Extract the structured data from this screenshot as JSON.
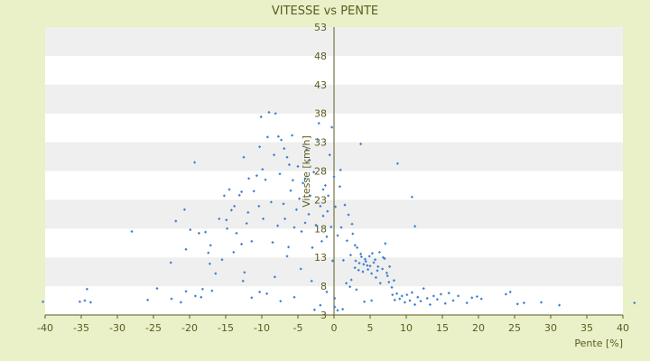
{
  "chart_data": {
    "type": "scatter",
    "title": "VITESSE vs PENTE",
    "xlabel": "Pente [%]",
    "ylabel": "Vitesse [km/h]",
    "xlim": [
      -40,
      40
    ],
    "ylim": [
      3,
      53
    ],
    "xticks": [
      "-40",
      "-35",
      "-30",
      "-25",
      "-20",
      "-15",
      "-10",
      "-5",
      "0",
      "5",
      "10",
      "15",
      "20",
      "25",
      "30",
      "35",
      "40"
    ],
    "yticks": [
      "3",
      "8",
      "13",
      "18",
      "23",
      "28",
      "33",
      "38",
      "43",
      "48",
      "53"
    ],
    "grid": "horizontal alternating bands",
    "colors": {
      "background": "#eaf0c8",
      "band_light": "#ffffff",
      "band_dark": "#efefef",
      "point": "#3f7fd0",
      "text": "#5b5b22",
      "axis": "#5b5b22"
    },
    "series": [
      {
        "values": [
          [
            -40.3,
            5.3
          ],
          [
            -35.2,
            5.3
          ],
          [
            -34.5,
            5.5
          ],
          [
            -34.2,
            7.5
          ],
          [
            -33.7,
            5.2
          ],
          [
            -28,
            17.5
          ],
          [
            -25.8,
            5.6
          ],
          [
            -24.5,
            7.6
          ],
          [
            -22.5,
            5.8
          ],
          [
            -21.9,
            19.3
          ],
          [
            -21.2,
            5.2
          ],
          [
            -20.5,
            7.1
          ],
          [
            -20.7,
            21.3
          ],
          [
            -19.9,
            17.8
          ],
          [
            -19.3,
            29.5
          ],
          [
            -19.2,
            6.3
          ],
          [
            -18.7,
            17.2
          ],
          [
            -18.4,
            6.1
          ],
          [
            -18.2,
            7.5
          ],
          [
            -17.4,
            13.8
          ],
          [
            -17.8,
            17.4
          ],
          [
            -17.2,
            11.9
          ],
          [
            -17.1,
            15.1
          ],
          [
            -16.4,
            10.2
          ],
          [
            -15.9,
            19.7
          ],
          [
            -15.2,
            23.7
          ],
          [
            -14.9,
            19.5
          ],
          [
            -14.5,
            24.8
          ],
          [
            -14.2,
            21.2
          ],
          [
            -13.9,
            13.9
          ],
          [
            -13.5,
            17.2
          ],
          [
            -13.1,
            23.8
          ],
          [
            -12.8,
            24.4
          ],
          [
            -12.5,
            30.4
          ],
          [
            -12.1,
            18.9
          ],
          [
            -11.8,
            26.7
          ],
          [
            -11.4,
            15.8
          ],
          [
            -11.1,
            24.5
          ],
          [
            -10.7,
            27.2
          ],
          [
            -10.4,
            21.9
          ],
          [
            -10.1,
            37.4
          ],
          [
            -9.8,
            19.7
          ],
          [
            -9.5,
            26.5
          ],
          [
            -9.2,
            33.9
          ],
          [
            -9.0,
            38.2
          ],
          [
            -8.7,
            22.6
          ],
          [
            -8.5,
            15.6
          ],
          [
            -8.1,
            38.0
          ],
          [
            -7.8,
            18.5
          ],
          [
            -7.5,
            27.5
          ],
          [
            -7.3,
            33.4
          ],
          [
            -7.0,
            22.3
          ],
          [
            -6.8,
            19.7
          ],
          [
            -6.5,
            30.4
          ],
          [
            -6.3,
            14.8
          ],
          [
            -6.0,
            24.6
          ],
          [
            -5.7,
            26.4
          ],
          [
            -5.5,
            18.2
          ],
          [
            -5.2,
            21.3
          ],
          [
            -5.0,
            28.8
          ],
          [
            -4.8,
            23.2
          ],
          [
            -4.5,
            17.5
          ],
          [
            -4.3,
            25.9
          ],
          [
            -4.0,
            19.0
          ],
          [
            -3.8,
            31.7
          ],
          [
            -3.5,
            20.5
          ],
          [
            -3.3,
            23.7
          ],
          [
            -3.0,
            14.7
          ],
          [
            -2.8,
            27.8
          ],
          [
            -2.5,
            18.6
          ],
          [
            -2.3,
            33.5
          ],
          [
            -2.1,
            36.3
          ],
          [
            -1.9,
            21.9
          ],
          [
            -1.7,
            15.8
          ],
          [
            -1.5,
            24.8
          ],
          [
            -1.2,
            25.5
          ],
          [
            -1.0,
            16.6
          ],
          [
            -0.8,
            23.7
          ],
          [
            -0.6,
            30.8
          ],
          [
            -0.4,
            18.3
          ],
          [
            -0.2,
            12.4
          ],
          [
            0.0,
            27.0
          ],
          [
            0.2,
            21.8
          ],
          [
            0.5,
            16.8
          ],
          [
            0.8,
            25.3
          ],
          [
            1.0,
            18.2
          ],
          [
            1.3,
            12.5
          ],
          [
            1.5,
            22.1
          ],
          [
            1.8,
            15.9
          ],
          [
            2.0,
            20.4
          ],
          [
            2.3,
            13.4
          ],
          [
            2.6,
            17.1
          ],
          [
            2.9,
            11.2
          ],
          [
            3.2,
            14.7
          ],
          [
            3.5,
            12.0
          ],
          [
            3.7,
            13.6
          ],
          [
            4.0,
            10.5
          ],
          [
            4.3,
            12.7
          ],
          [
            4.6,
            11.6
          ],
          [
            4.9,
            13.2
          ],
          [
            5.2,
            10.2
          ],
          [
            5.5,
            12.1
          ],
          [
            5.8,
            9.5
          ],
          [
            6.1,
            11.4
          ],
          [
            6.4,
            8.5
          ],
          [
            6.8,
            13.0
          ],
          [
            7.1,
            15.4
          ],
          [
            7.4,
            9.8
          ],
          [
            7.7,
            11.4
          ],
          [
            8.1,
            6.5
          ],
          [
            8.4,
            5.6
          ],
          [
            8.7,
            6.7
          ],
          [
            9.1,
            5.8
          ],
          [
            9.4,
            6.3
          ],
          [
            9.8,
            5.2
          ],
          [
            10.1,
            6.5
          ],
          [
            10.5,
            5.5
          ],
          [
            10.8,
            6.9
          ],
          [
            11.2,
            4.8
          ],
          [
            11.6,
            6.1
          ],
          [
            12.0,
            5.4
          ],
          [
            12.4,
            7.6
          ],
          [
            12.9,
            5.9
          ],
          [
            13.3,
            4.8
          ],
          [
            13.8,
            6.3
          ],
          [
            14.3,
            5.7
          ],
          [
            14.8,
            6.6
          ],
          [
            15.4,
            5.0
          ],
          [
            15.9,
            6.8
          ],
          [
            16.5,
            5.5
          ],
          [
            17.2,
            6.3
          ],
          [
            18.4,
            5.1
          ],
          [
            19.1,
            6.0
          ],
          [
            19.8,
            6.2
          ],
          [
            20.4,
            5.8
          ],
          [
            23.8,
            6.6
          ],
          [
            24.4,
            7.0
          ],
          [
            25.4,
            4.9
          ],
          [
            26.3,
            5.1
          ],
          [
            28.7,
            5.2
          ],
          [
            31.2,
            4.7
          ],
          [
            41.6,
            5.1
          ],
          [
            10.8,
            23.5
          ],
          [
            11.2,
            18.4
          ],
          [
            8.8,
            29.3
          ],
          [
            3.7,
            32.7
          ],
          [
            2.5,
            18.8
          ],
          [
            2.9,
            15.1
          ],
          [
            0.9,
            28.2
          ],
          [
            -0.3,
            35.6
          ],
          [
            -10.3,
            32.2
          ],
          [
            -12.4,
            10.4
          ],
          [
            -12.8,
            15.3
          ],
          [
            -14.8,
            18.0
          ],
          [
            -16.9,
            7.2
          ],
          [
            -20.5,
            14.4
          ],
          [
            -22.6,
            12.1
          ],
          [
            -7.7,
            34.0
          ],
          [
            -6.9,
            31.9
          ],
          [
            -6.2,
            29.1
          ],
          [
            -2.7,
            3.9
          ],
          [
            -1.9,
            4.7
          ],
          [
            -1.0,
            7.0
          ],
          [
            0.1,
            4.4
          ],
          [
            0.1,
            5.9
          ],
          [
            0.5,
            3.8
          ],
          [
            1.2,
            4.0
          ],
          [
            4.2,
            5.3
          ],
          [
            5.2,
            5.5
          ],
          [
            2.2,
            7.9
          ],
          [
            -3.1,
            8.9
          ],
          [
            -5.5,
            6.1
          ],
          [
            -7.4,
            5.4
          ],
          [
            -8.2,
            9.6
          ],
          [
            -9.3,
            6.7
          ],
          [
            -10.3,
            7.0
          ],
          [
            -11.4,
            6.0
          ],
          [
            -12.6,
            8.9
          ],
          [
            -4.6,
            11.0
          ],
          [
            -6.5,
            13.2
          ],
          [
            3.0,
            12.4
          ],
          [
            3.4,
            10.8
          ],
          [
            3.8,
            13.1
          ],
          [
            4.1,
            11.8
          ],
          [
            4.4,
            12.3
          ],
          [
            4.7,
            10.9
          ],
          [
            5.0,
            11.5
          ],
          [
            5.3,
            13.7
          ],
          [
            5.7,
            12.6
          ],
          [
            6.0,
            10.7
          ],
          [
            6.3,
            13.9
          ],
          [
            6.7,
            11.0
          ],
          [
            7.0,
            12.8
          ],
          [
            7.3,
            10.3
          ],
          [
            7.6,
            8.7
          ],
          [
            8.0,
            7.8
          ],
          [
            8.3,
            9.0
          ],
          [
            1.7,
            8.5
          ],
          [
            2.4,
            9.1
          ],
          [
            3.1,
            7.4
          ],
          [
            -15.5,
            12.6
          ],
          [
            -13.8,
            21.9
          ],
          [
            -11.9,
            20.8
          ],
          [
            -9.9,
            28.3
          ],
          [
            -8.3,
            30.8
          ],
          [
            -5.8,
            34.2
          ],
          [
            -4.0,
            26.7
          ],
          [
            -3.4,
            29.9
          ],
          [
            -1.5,
            20.2
          ],
          [
            -0.9,
            21.0
          ]
        ]
      }
    ]
  }
}
